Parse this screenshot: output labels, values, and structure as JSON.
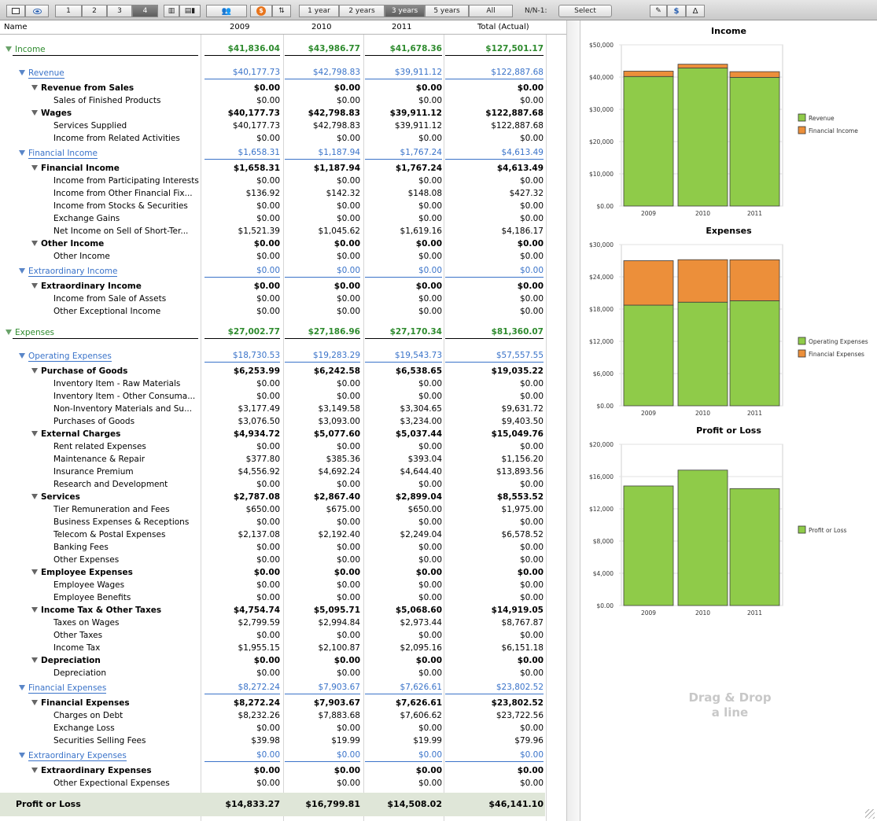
{
  "toolbar": {
    "pages": [
      "1",
      "2",
      "3",
      "4"
    ],
    "ranges": [
      "1 year",
      "2 years",
      "3 years",
      "5 years",
      "All"
    ],
    "active_range": "3 years",
    "nn_label": "N/N-1:",
    "select_label": "Select"
  },
  "table": {
    "headers": {
      "name": "Name",
      "y2009": "2009",
      "y2010": "2010",
      "y2011": "2011",
      "total": "Total (Actual)"
    },
    "rows": [
      {
        "label": "Income",
        "level": 0,
        "style": "green",
        "tri": true,
        "v": [
          "$41,836.04",
          "$43,986.77",
          "$41,678.36",
          "$127,501.17"
        ]
      },
      {
        "label": "Revenue",
        "level": 1,
        "style": "blue",
        "tri": true,
        "v": [
          "$40,177.73",
          "$42,798.83",
          "$39,911.12",
          "$122,887.68"
        ]
      },
      {
        "label": "Revenue from Sales",
        "level": 2,
        "style": "bold",
        "tri": true,
        "v": [
          "$0.00",
          "$0.00",
          "$0.00",
          "$0.00"
        ]
      },
      {
        "label": "Sales of Finished Products",
        "level": 3,
        "style": "plain",
        "tri": false,
        "v": [
          "$0.00",
          "$0.00",
          "$0.00",
          "$0.00"
        ]
      },
      {
        "label": "Wages",
        "level": 2,
        "style": "bold",
        "tri": true,
        "v": [
          "$40,177.73",
          "$42,798.83",
          "$39,911.12",
          "$122,887.68"
        ]
      },
      {
        "label": "Services Supplied",
        "level": 3,
        "style": "plain",
        "tri": false,
        "v": [
          "$40,177.73",
          "$42,798.83",
          "$39,911.12",
          "$122,887.68"
        ]
      },
      {
        "label": "Income from Related Activities",
        "level": 3,
        "style": "plain",
        "tri": false,
        "v": [
          "$0.00",
          "$0.00",
          "$0.00",
          "$0.00"
        ]
      },
      {
        "label": "Financial Income",
        "level": 1,
        "style": "blue",
        "tri": true,
        "v": [
          "$1,658.31",
          "$1,187.94",
          "$1,767.24",
          "$4,613.49"
        ]
      },
      {
        "label": "Financial Income",
        "level": 2,
        "style": "bold",
        "tri": true,
        "v": [
          "$1,658.31",
          "$1,187.94",
          "$1,767.24",
          "$4,613.49"
        ]
      },
      {
        "label": "Income from Participating Interests",
        "level": 3,
        "style": "plain",
        "tri": false,
        "v": [
          "$0.00",
          "$0.00",
          "$0.00",
          "$0.00"
        ]
      },
      {
        "label": "Income from Other Financial Fix...",
        "level": 3,
        "style": "plain",
        "tri": false,
        "v": [
          "$136.92",
          "$142.32",
          "$148.08",
          "$427.32"
        ]
      },
      {
        "label": "Income from Stocks & Securities",
        "level": 3,
        "style": "plain",
        "tri": false,
        "v": [
          "$0.00",
          "$0.00",
          "$0.00",
          "$0.00"
        ]
      },
      {
        "label": "Exchange Gains",
        "level": 3,
        "style": "plain",
        "tri": false,
        "v": [
          "$0.00",
          "$0.00",
          "$0.00",
          "$0.00"
        ]
      },
      {
        "label": "Net Income on Sell of Short-Ter...",
        "level": 3,
        "style": "plain",
        "tri": false,
        "v": [
          "$1,521.39",
          "$1,045.62",
          "$1,619.16",
          "$4,186.17"
        ]
      },
      {
        "label": "Other Income",
        "level": 2,
        "style": "bold",
        "tri": true,
        "v": [
          "$0.00",
          "$0.00",
          "$0.00",
          "$0.00"
        ]
      },
      {
        "label": "Other Income",
        "level": 3,
        "style": "plain",
        "tri": false,
        "v": [
          "$0.00",
          "$0.00",
          "$0.00",
          "$0.00"
        ]
      },
      {
        "label": "Extraordinary Income",
        "level": 1,
        "style": "blue",
        "tri": true,
        "v": [
          "$0.00",
          "$0.00",
          "$0.00",
          "$0.00"
        ]
      },
      {
        "label": "Extraordinary Income",
        "level": 2,
        "style": "bold",
        "tri": true,
        "v": [
          "$0.00",
          "$0.00",
          "$0.00",
          "$0.00"
        ]
      },
      {
        "label": "Income from Sale of Assets",
        "level": 3,
        "style": "plain",
        "tri": false,
        "v": [
          "$0.00",
          "$0.00",
          "$0.00",
          "$0.00"
        ]
      },
      {
        "label": "Other Exceptional Income",
        "level": 3,
        "style": "plain",
        "tri": false,
        "v": [
          "$0.00",
          "$0.00",
          "$0.00",
          "$0.00"
        ]
      },
      {
        "label": "Expenses",
        "level": 0,
        "style": "green",
        "tri": true,
        "v": [
          "$27,002.77",
          "$27,186.96",
          "$27,170.34",
          "$81,360.07"
        ]
      },
      {
        "label": "Operating Expenses",
        "level": 1,
        "style": "blue",
        "tri": true,
        "v": [
          "$18,730.53",
          "$19,283.29",
          "$19,543.73",
          "$57,557.55"
        ]
      },
      {
        "label": "Purchase of Goods",
        "level": 2,
        "style": "bold",
        "tri": true,
        "v": [
          "$6,253.99",
          "$6,242.58",
          "$6,538.65",
          "$19,035.22"
        ]
      },
      {
        "label": "Inventory Item - Raw Materials",
        "level": 3,
        "style": "plain",
        "tri": false,
        "v": [
          "$0.00",
          "$0.00",
          "$0.00",
          "$0.00"
        ]
      },
      {
        "label": "Inventory Item - Other Consuma...",
        "level": 3,
        "style": "plain",
        "tri": false,
        "v": [
          "$0.00",
          "$0.00",
          "$0.00",
          "$0.00"
        ]
      },
      {
        "label": "Non-Inventory Materials and Su...",
        "level": 3,
        "style": "plain",
        "tri": false,
        "v": [
          "$3,177.49",
          "$3,149.58",
          "$3,304.65",
          "$9,631.72"
        ]
      },
      {
        "label": "Purchases of Goods",
        "level": 3,
        "style": "plain",
        "tri": false,
        "v": [
          "$3,076.50",
          "$3,093.00",
          "$3,234.00",
          "$9,403.50"
        ]
      },
      {
        "label": "External Charges",
        "level": 2,
        "style": "bold",
        "tri": true,
        "v": [
          "$4,934.72",
          "$5,077.60",
          "$5,037.44",
          "$15,049.76"
        ]
      },
      {
        "label": "Rent related Expenses",
        "level": 3,
        "style": "plain",
        "tri": false,
        "v": [
          "$0.00",
          "$0.00",
          "$0.00",
          "$0.00"
        ]
      },
      {
        "label": "Maintenance & Repair",
        "level": 3,
        "style": "plain",
        "tri": false,
        "v": [
          "$377.80",
          "$385.36",
          "$393.04",
          "$1,156.20"
        ]
      },
      {
        "label": "Insurance Premium",
        "level": 3,
        "style": "plain",
        "tri": false,
        "v": [
          "$4,556.92",
          "$4,692.24",
          "$4,644.40",
          "$13,893.56"
        ]
      },
      {
        "label": "Research and Development",
        "level": 3,
        "style": "plain",
        "tri": false,
        "v": [
          "$0.00",
          "$0.00",
          "$0.00",
          "$0.00"
        ]
      },
      {
        "label": "Services",
        "level": 2,
        "style": "bold",
        "tri": true,
        "v": [
          "$2,787.08",
          "$2,867.40",
          "$2,899.04",
          "$8,553.52"
        ]
      },
      {
        "label": "Tier Remuneration and Fees",
        "level": 3,
        "style": "plain",
        "tri": false,
        "v": [
          "$650.00",
          "$675.00",
          "$650.00",
          "$1,975.00"
        ]
      },
      {
        "label": "Business Expenses & Receptions",
        "level": 3,
        "style": "plain",
        "tri": false,
        "v": [
          "$0.00",
          "$0.00",
          "$0.00",
          "$0.00"
        ]
      },
      {
        "label": "Telecom & Postal Expenses",
        "level": 3,
        "style": "plain",
        "tri": false,
        "v": [
          "$2,137.08",
          "$2,192.40",
          "$2,249.04",
          "$6,578.52"
        ]
      },
      {
        "label": "Banking Fees",
        "level": 3,
        "style": "plain",
        "tri": false,
        "v": [
          "$0.00",
          "$0.00",
          "$0.00",
          "$0.00"
        ]
      },
      {
        "label": "Other Expenses",
        "level": 3,
        "style": "plain",
        "tri": false,
        "v": [
          "$0.00",
          "$0.00",
          "$0.00",
          "$0.00"
        ]
      },
      {
        "label": "Employee Expenses",
        "level": 2,
        "style": "bold",
        "tri": true,
        "v": [
          "$0.00",
          "$0.00",
          "$0.00",
          "$0.00"
        ]
      },
      {
        "label": "Employee Wages",
        "level": 3,
        "style": "plain",
        "tri": false,
        "v": [
          "$0.00",
          "$0.00",
          "$0.00",
          "$0.00"
        ]
      },
      {
        "label": "Employee Benefits",
        "level": 3,
        "style": "plain",
        "tri": false,
        "v": [
          "$0.00",
          "$0.00",
          "$0.00",
          "$0.00"
        ]
      },
      {
        "label": "Income Tax & Other Taxes",
        "level": 2,
        "style": "bold",
        "tri": true,
        "v": [
          "$4,754.74",
          "$5,095.71",
          "$5,068.60",
          "$14,919.05"
        ]
      },
      {
        "label": "Taxes on Wages",
        "level": 3,
        "style": "plain",
        "tri": false,
        "v": [
          "$2,799.59",
          "$2,994.84",
          "$2,973.44",
          "$8,767.87"
        ]
      },
      {
        "label": "Other Taxes",
        "level": 3,
        "style": "plain",
        "tri": false,
        "v": [
          "$0.00",
          "$0.00",
          "$0.00",
          "$0.00"
        ]
      },
      {
        "label": "Income Tax",
        "level": 3,
        "style": "plain",
        "tri": false,
        "v": [
          "$1,955.15",
          "$2,100.87",
          "$2,095.16",
          "$6,151.18"
        ]
      },
      {
        "label": "Depreciation",
        "level": 2,
        "style": "bold",
        "tri": true,
        "v": [
          "$0.00",
          "$0.00",
          "$0.00",
          "$0.00"
        ]
      },
      {
        "label": "Depreciation",
        "level": 3,
        "style": "plain",
        "tri": false,
        "v": [
          "$0.00",
          "$0.00",
          "$0.00",
          "$0.00"
        ]
      },
      {
        "label": "Financial Expenses",
        "level": 1,
        "style": "blue",
        "tri": true,
        "v": [
          "$8,272.24",
          "$7,903.67",
          "$7,626.61",
          "$23,802.52"
        ]
      },
      {
        "label": "Financial Expenses",
        "level": 2,
        "style": "bold",
        "tri": true,
        "v": [
          "$8,272.24",
          "$7,903.67",
          "$7,626.61",
          "$23,802.52"
        ]
      },
      {
        "label": "Charges on Debt",
        "level": 3,
        "style": "plain",
        "tri": false,
        "v": [
          "$8,232.26",
          "$7,883.68",
          "$7,606.62",
          "$23,722.56"
        ]
      },
      {
        "label": "Exchange Loss",
        "level": 3,
        "style": "plain",
        "tri": false,
        "v": [
          "$0.00",
          "$0.00",
          "$0.00",
          "$0.00"
        ]
      },
      {
        "label": "Securities Selling Fees",
        "level": 3,
        "style": "plain",
        "tri": false,
        "v": [
          "$39.98",
          "$19.99",
          "$19.99",
          "$79.96"
        ]
      },
      {
        "label": "Extraordinary Expenses",
        "level": 1,
        "style": "blue",
        "tri": true,
        "v": [
          "$0.00",
          "$0.00",
          "$0.00",
          "$0.00"
        ]
      },
      {
        "label": "Extraordinary Expenses",
        "level": 2,
        "style": "bold",
        "tri": true,
        "v": [
          "$0.00",
          "$0.00",
          "$0.00",
          "$0.00"
        ]
      },
      {
        "label": "Other Expectional Expenses",
        "level": 3,
        "style": "plain",
        "tri": false,
        "v": [
          "$0.00",
          "$0.00",
          "$0.00",
          "$0.00"
        ]
      }
    ],
    "total": {
      "label": "Profit or Loss",
      "v": [
        "$14,833.27",
        "$16,799.81",
        "$14,508.02",
        "$46,141.10"
      ]
    }
  },
  "chart_data": [
    {
      "type": "bar",
      "title": "Income",
      "categories": [
        "2009",
        "2010",
        "2011"
      ],
      "stacked": true,
      "series": [
        {
          "name": "Revenue",
          "values": [
            40177.73,
            42798.83,
            39911.12
          ],
          "color": "#8fcb49"
        },
        {
          "name": "Financial Income",
          "values": [
            1658.31,
            1187.94,
            1767.24
          ],
          "color": "#ec8f3a"
        }
      ],
      "ylim": [
        0,
        50000
      ],
      "yticks": [
        "$0.00",
        "$10,000",
        "$20,000",
        "$30,000",
        "$40,000",
        "$50,000"
      ],
      "legend": "right",
      "grid": true
    },
    {
      "type": "bar",
      "title": "Expenses",
      "categories": [
        "2009",
        "2010",
        "2011"
      ],
      "stacked": true,
      "series": [
        {
          "name": "Operating Expenses",
          "values": [
            18730.53,
            19283.29,
            19543.73
          ],
          "color": "#8fcb49"
        },
        {
          "name": "Financial Expenses",
          "values": [
            8272.24,
            7903.67,
            7626.61
          ],
          "color": "#ec8f3a"
        }
      ],
      "ylim": [
        0,
        30000
      ],
      "yticks": [
        "$0.00",
        "$6,000",
        "$12,000",
        "$18,000",
        "$24,000",
        "$30,000"
      ],
      "legend": "right",
      "grid": true
    },
    {
      "type": "bar",
      "title": "Profit or Loss",
      "categories": [
        "2009",
        "2010",
        "2011"
      ],
      "stacked": false,
      "series": [
        {
          "name": "Profit or Loss",
          "values": [
            14833.27,
            16799.81,
            14508.02
          ],
          "color": "#8fcb49"
        }
      ],
      "ylim": [
        0,
        20000
      ],
      "yticks": [
        "$0.00",
        "$4,000",
        "$8,000",
        "$12,000",
        "$16,000",
        "$20,000"
      ],
      "legend": "right",
      "grid": true
    }
  ],
  "drag_drop": {
    "line1": "Drag & Drop",
    "line2": "a line"
  }
}
